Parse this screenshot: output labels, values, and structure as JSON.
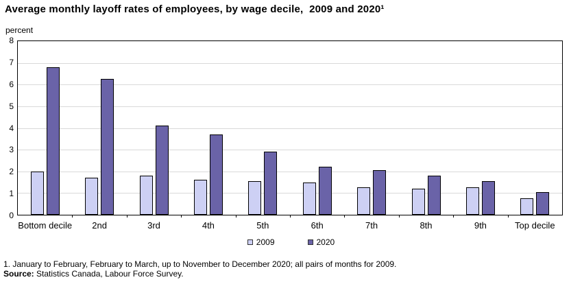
{
  "chart_data": {
    "type": "bar",
    "title": "Average monthly layoff rates of employees, by wage decile,  2009 and 2020¹",
    "ylabel": "percent",
    "ylim": [
      0,
      8
    ],
    "ytick_step": 1,
    "grid": "horizontal",
    "legend_position": "bottom-center",
    "categories": [
      "Bottom decile",
      "2nd",
      "3rd",
      "4th",
      "5th",
      "6th",
      "7th",
      "8th",
      "9th",
      "Top decile"
    ],
    "series": [
      {
        "name": "2009",
        "color": "#cdd0f4",
        "values": [
          2.0,
          1.7,
          1.8,
          1.6,
          1.55,
          1.5,
          1.25,
          1.2,
          1.25,
          0.75
        ]
      },
      {
        "name": "2020",
        "color": "#6a63a8",
        "values": [
          6.8,
          6.25,
          4.1,
          3.7,
          2.9,
          2.2,
          2.05,
          1.8,
          1.55,
          1.05
        ]
      }
    ]
  },
  "colors": {
    "axis": "#000000",
    "gridline": "#d9d9d9",
    "bar_border": "#000000",
    "background": "#ffffff"
  },
  "footnotes": {
    "note1": "1. January to February, February to March, up to November to December 2020; all pairs of months for 2009.",
    "source_label": "Source:",
    "source_text": " Statistics Canada, Labour Force Survey."
  }
}
